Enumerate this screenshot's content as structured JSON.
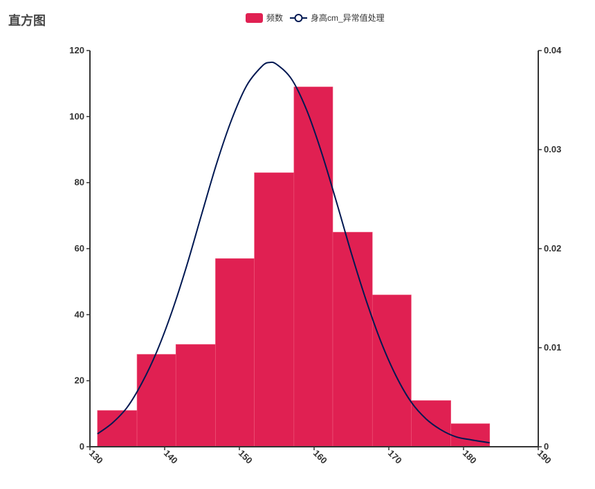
{
  "chart_data": {
    "type": "bar",
    "title": "直方图",
    "legend": {
      "position": "top-center",
      "items": [
        {
          "label": "频数",
          "kind": "bar",
          "color": "#e02052"
        },
        {
          "label": "身高cm_异常值处理",
          "kind": "line",
          "color": "#001852"
        }
      ]
    },
    "x_axis": {
      "min": 130,
      "max": 190,
      "ticks": [
        130,
        140,
        150,
        160,
        170,
        180,
        190
      ],
      "label_rotation": -45
    },
    "y_axis_left": {
      "min": 0,
      "max": 120,
      "ticks": [
        0,
        20,
        40,
        60,
        80,
        100,
        120
      ]
    },
    "y_axis_right": {
      "min": 0,
      "max": 0.04,
      "ticks": [
        "0",
        "0.01",
        "0.02",
        "0.03",
        "0.04"
      ]
    },
    "bar_color": "#e02052",
    "bins": [
      {
        "x0": 131.0,
        "x1": 136.3,
        "value": 11
      },
      {
        "x0": 136.3,
        "x1": 141.5,
        "value": 28
      },
      {
        "x0": 141.5,
        "x1": 146.8,
        "value": 31
      },
      {
        "x0": 146.8,
        "x1": 152.0,
        "value": 57
      },
      {
        "x0": 152.0,
        "x1": 157.3,
        "value": 83
      },
      {
        "x0": 157.3,
        "x1": 162.5,
        "value": 109
      },
      {
        "x0": 162.5,
        "x1": 167.8,
        "value": 65
      },
      {
        "x0": 167.8,
        "x1": 173.0,
        "value": 46
      },
      {
        "x0": 173.0,
        "x1": 178.3,
        "value": 14
      },
      {
        "x0": 178.3,
        "x1": 183.5,
        "value": 7
      }
    ],
    "curve": {
      "name": "身高cm_异常值处理",
      "color": "#001852",
      "axis": "right",
      "points": [
        [
          131.0,
          0.0013
        ],
        [
          133.0,
          0.0024
        ],
        [
          135.0,
          0.004
        ],
        [
          137.0,
          0.0065
        ],
        [
          139.0,
          0.0097
        ],
        [
          141.0,
          0.0137
        ],
        [
          143.0,
          0.0184
        ],
        [
          145.0,
          0.0236
        ],
        [
          147.0,
          0.0287
        ],
        [
          149.0,
          0.0331
        ],
        [
          151.0,
          0.0365
        ],
        [
          153.0,
          0.0384
        ],
        [
          154.0,
          0.0388
        ],
        [
          155.0,
          0.0386
        ],
        [
          157.0,
          0.0371
        ],
        [
          159.0,
          0.034
        ],
        [
          161.0,
          0.0297
        ],
        [
          163.0,
          0.0247
        ],
        [
          165.0,
          0.0195
        ],
        [
          167.0,
          0.0147
        ],
        [
          169.0,
          0.0105
        ],
        [
          171.0,
          0.0071
        ],
        [
          173.0,
          0.0045
        ],
        [
          175.0,
          0.0028
        ],
        [
          177.0,
          0.0017
        ],
        [
          179.0,
          0.001
        ],
        [
          181.0,
          0.0007
        ],
        [
          183.5,
          0.0004
        ]
      ]
    }
  }
}
